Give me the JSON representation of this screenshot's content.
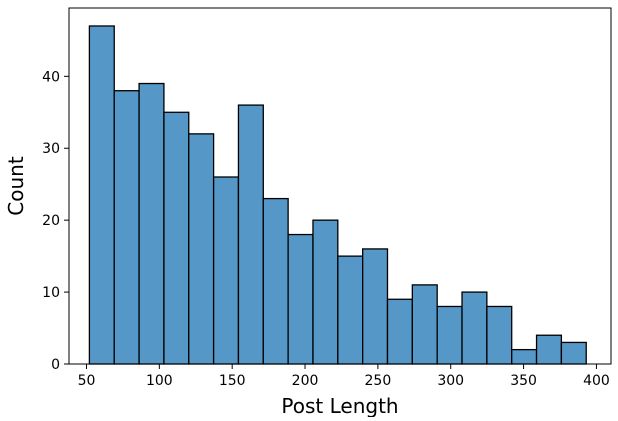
{
  "chart_data": {
    "type": "bar",
    "title": "",
    "xlabel": "Post Length",
    "ylabel": "Count",
    "xlim": [
      38,
      410
    ],
    "ylim": [
      0,
      49.5
    ],
    "x_ticks": [
      50,
      100,
      150,
      200,
      250,
      300,
      350,
      400
    ],
    "y_ticks": [
      0,
      10,
      20,
      30,
      40
    ],
    "bin_edges": [
      52,
      69.05,
      86.1,
      103.15,
      120.2,
      137.25,
      154.3,
      171.35,
      188.4,
      205.45,
      222.5,
      239.55,
      256.6,
      273.65,
      290.7,
      307.75,
      324.8,
      341.85,
      358.9,
      375.95,
      393
    ],
    "values": [
      47,
      38,
      39,
      35,
      32,
      26,
      36,
      23,
      18,
      20,
      15,
      16,
      9,
      11,
      8,
      10,
      8,
      2,
      4,
      3
    ],
    "bar_color": "#5597c7",
    "edge_color": "#000000",
    "grid": false,
    "legend": "none"
  }
}
